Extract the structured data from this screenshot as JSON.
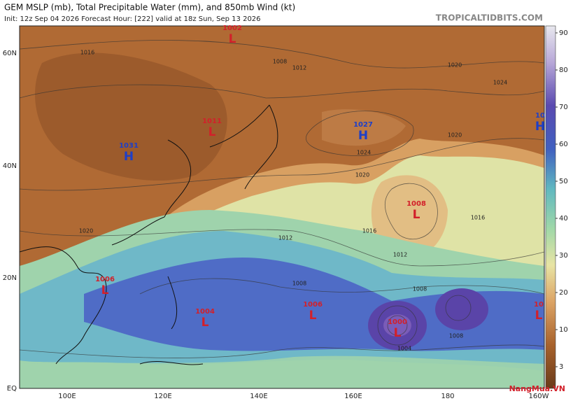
{
  "header": {
    "title": "GEM MSLP (mb), Total Precipitable Water (mm), and 850mb Wind (kt)",
    "subtitle": "Init: 12z Sep 04 2026   Forecast Hour: [222]   valid at 18z Sun, Sep 13 2026",
    "site": "TROPICALTIDBITS.COM"
  },
  "latitude_labels": [
    "60N",
    "40N",
    "20N",
    "EQ"
  ],
  "longitude_labels": [
    "100E",
    "120E",
    "140E",
    "160E",
    "180",
    "160W"
  ],
  "colorbar_labels": [
    "90",
    "80",
    "70",
    "60",
    "50",
    "40",
    "30",
    "20",
    "10",
    "3"
  ],
  "pressure_centers": [
    {
      "value": "1002",
      "letter": "L"
    },
    {
      "value": "1031",
      "letter": "H"
    },
    {
      "value": "1011",
      "letter": "L"
    },
    {
      "value": "1027",
      "letter": "H"
    },
    {
      "value": "1008",
      "letter": "L"
    },
    {
      "value": "1006",
      "letter": "L"
    },
    {
      "value": "1004",
      "letter": "L"
    },
    {
      "value": "1006",
      "letter": "L"
    },
    {
      "value": "1000",
      "letter": "L"
    },
    {
      "value": "10",
      "letter": "H"
    },
    {
      "value": "10",
      "letter": "L"
    }
  ],
  "isobar_labels": [
    "1016",
    "1008",
    "1012",
    "1020",
    "1024",
    "1020",
    "1024",
    "1016",
    "1020",
    "1012",
    "1016",
    "1012",
    "1008",
    "1008",
    "1004",
    "1008",
    "1020"
  ],
  "watermark": "NangMua.VN"
}
